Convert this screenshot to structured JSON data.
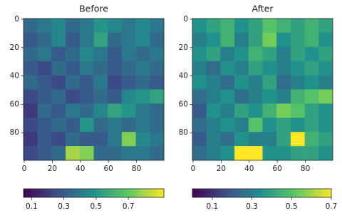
{
  "chart_data": [
    {
      "type": "heatmap",
      "title": "Before",
      "xbins": [
        -0.5,
        9.5,
        19.5,
        29.5,
        39.5,
        49.5,
        59.5,
        69.5,
        79.5,
        89.5,
        99.5
      ],
      "ybins": [
        -0.5,
        9.5,
        19.5,
        29.5,
        39.5,
        49.5,
        59.5,
        69.5,
        79.5,
        89.5,
        99.5
      ],
      "values": [
        [
          0.35,
          0.4,
          0.45,
          0.35,
          0.4,
          0.5,
          0.45,
          0.4,
          0.45,
          0.4
        ],
        [
          0.3,
          0.35,
          0.45,
          0.3,
          0.4,
          0.55,
          0.35,
          0.4,
          0.45,
          0.35
        ],
        [
          0.35,
          0.4,
          0.3,
          0.35,
          0.45,
          0.4,
          0.3,
          0.4,
          0.35,
          0.4
        ],
        [
          0.3,
          0.25,
          0.35,
          0.3,
          0.4,
          0.35,
          0.3,
          0.35,
          0.4,
          0.35
        ],
        [
          0.35,
          0.3,
          0.25,
          0.35,
          0.3,
          0.4,
          0.25,
          0.3,
          0.35,
          0.3
        ],
        [
          0.25,
          0.3,
          0.35,
          0.25,
          0.3,
          0.35,
          0.3,
          0.45,
          0.5,
          0.55
        ],
        [
          0.2,
          0.35,
          0.3,
          0.4,
          0.35,
          0.45,
          0.55,
          0.5,
          0.4,
          0.35
        ],
        [
          0.25,
          0.3,
          0.35,
          0.3,
          0.5,
          0.35,
          0.4,
          0.35,
          0.4,
          0.35
        ],
        [
          0.2,
          0.3,
          0.25,
          0.35,
          0.3,
          0.3,
          0.4,
          0.75,
          0.45,
          0.4
        ],
        [
          0.25,
          0.3,
          0.35,
          0.8,
          0.75,
          0.35,
          0.35,
          0.4,
          0.4,
          0.35
        ]
      ],
      "xlim": [
        -0.5,
        99.5
      ],
      "ylim": [
        99.5,
        -0.5
      ],
      "xticks": [
        0,
        20,
        40,
        60,
        80
      ],
      "yticks": [
        0,
        20,
        40,
        60,
        80
      ],
      "clim": [
        0.05,
        0.92
      ],
      "cticks": [
        0.1,
        0.3,
        0.5,
        0.7
      ],
      "colormap": [
        "#440154",
        "#3b528b",
        "#21918c",
        "#5ec962",
        "#fde725"
      ]
    },
    {
      "type": "heatmap",
      "title": "After",
      "xbins": [
        -0.5,
        9.5,
        19.5,
        29.5,
        39.5,
        49.5,
        59.5,
        69.5,
        79.5,
        89.5,
        99.5
      ],
      "ybins": [
        -0.5,
        9.5,
        19.5,
        29.5,
        39.5,
        49.5,
        59.5,
        69.5,
        79.5,
        89.5,
        99.5
      ],
      "values": [
        [
          0.35,
          0.4,
          0.45,
          0.35,
          0.4,
          0.5,
          0.45,
          0.4,
          0.45,
          0.4
        ],
        [
          0.3,
          0.35,
          0.45,
          0.3,
          0.4,
          0.55,
          0.35,
          0.4,
          0.45,
          0.35
        ],
        [
          0.35,
          0.4,
          0.3,
          0.35,
          0.45,
          0.4,
          0.3,
          0.4,
          0.35,
          0.4
        ],
        [
          0.3,
          0.25,
          0.35,
          0.3,
          0.4,
          0.35,
          0.3,
          0.35,
          0.4,
          0.35
        ],
        [
          0.35,
          0.3,
          0.25,
          0.35,
          0.3,
          0.4,
          0.25,
          0.3,
          0.35,
          0.3
        ],
        [
          0.25,
          0.3,
          0.35,
          0.25,
          0.3,
          0.35,
          0.3,
          0.45,
          0.5,
          0.55
        ],
        [
          0.2,
          0.35,
          0.3,
          0.4,
          0.35,
          0.45,
          0.55,
          0.5,
          0.4,
          0.35
        ],
        [
          0.25,
          0.3,
          0.35,
          0.3,
          0.5,
          0.35,
          0.4,
          0.35,
          0.4,
          0.35
        ],
        [
          0.2,
          0.3,
          0.25,
          0.35,
          0.3,
          0.3,
          0.4,
          0.7,
          0.45,
          0.4
        ],
        [
          0.25,
          0.3,
          0.35,
          0.7,
          0.7,
          0.35,
          0.35,
          0.4,
          0.4,
          0.35
        ]
      ],
      "xlim": [
        -0.5,
        99.5
      ],
      "ylim": [
        99.5,
        -0.5
      ],
      "xticks": [
        0,
        20,
        40,
        60,
        80
      ],
      "yticks": [
        0,
        20,
        40,
        60,
        80
      ],
      "clim": [
        0,
        0.7
      ],
      "cticks": [
        0.1,
        0.3,
        0.5,
        0.7
      ],
      "colormap": [
        "#440154",
        "#3b528b",
        "#21918c",
        "#5ec962",
        "#fde725"
      ]
    }
  ]
}
